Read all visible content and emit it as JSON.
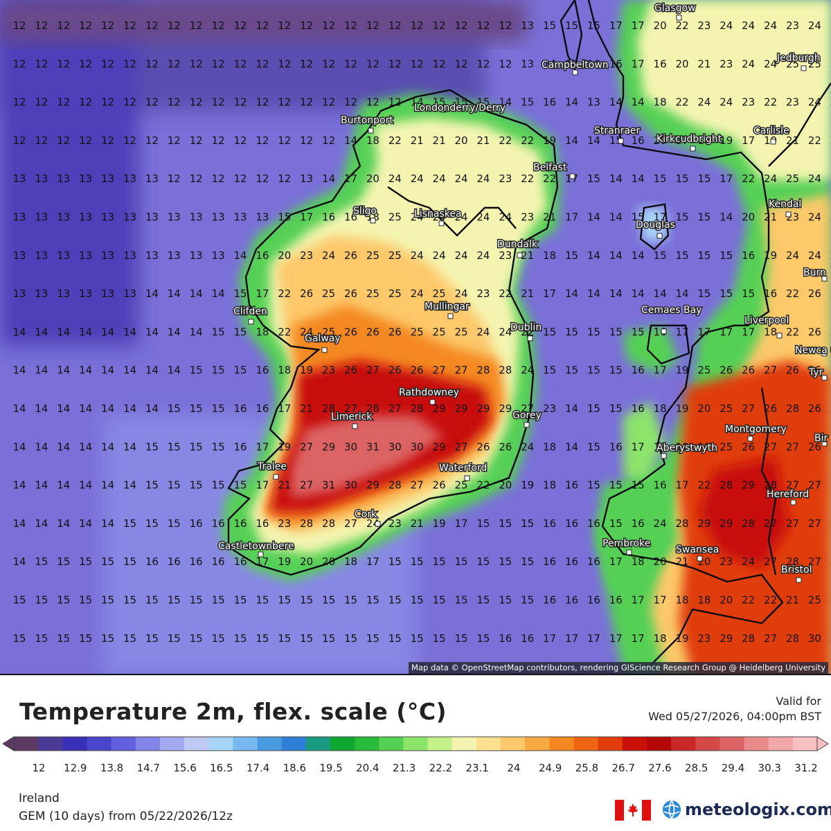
{
  "map": {
    "attribution": "Map data © OpenStreetMap contributors, rendering GIScience Research Group @ Heidelberg University",
    "grid_rows": [
      "12 12 12 12 12 12 12 12 12 12 12 12 12 12 12 12 12 12 12 12 12 12 12 13 15 15 15 17 17 20 22 23 24 24 24 23 24 24",
      "12 12 12 12 12 12 12 12 12 12 12 12 12 12 12 12 12 12 12 12 12 12 12 13 14 15 16 16 17 16 20 21 23 24 24 25 25 25",
      "12 12 12 12 12 12 12 12 12 12 12 12 12 12 12 12 12 12 14 15 15 15 14 15 16 14 13 14 14 18 22 24 24 23 22 23 24 24",
      "12 12 12 12 12 12 12 12 12 12 12 12 12 12 12 14 18 22 21 21 20 21 22 22 19 14 14 15 16 20 17 18 19 17 19 21 22 23",
      "13 13 13 13 13 13 13 12 12 12 12 12 12 13 14 17 20 24 24 24 24 24 23 22 22 17 15 14 14 15 15 15 17 22 24 25 24 24",
      "13 13 13 13 13 13 13 13 13 13 13 13 15 17 16 16 18 25 24 24 24 24 24 23 21 17 14 14 15 17 15 15 14 20 21 23 24 24",
      "13 13 13 13 13 13 13 13 13 13 14 16 20 23 24 26 25 25 24 24 24 24 23 21 18 15 14 14 14 15 15 15 15 16 19 24 24 24",
      "13 13 13 13 13 13 14 14 14 14 15 17 22 26 25 26 25 25 24 25 24 23 22 21 17 14 14 14 14 14 14 15 15 15 16 22 26 25",
      "14 14 14 14 14 14 14 14 14 15 15 18 22 24 25 26 26 26 25 25 25 24 24 22 15 15 15 15 15 16 17 17 17 17 18 22 26 25",
      "14 14 14 14 14 14 14 14 15 15 15 16 18 19 23 26 27 26 26 27 27 28 28 24 15 15 15 15 16 17 19 25 26 26 27 26 26 27",
      "14 14 14 14 14 14 14 15 15 15 16 16 17 21 28 27 28 27 28 29 29 29 29 27 23 14 15 15 16 18 19 20 25 27 26 28 26 25",
      "14 14 14 14 14 14 15 15 15 15 16 17 19 27 29 30 31 30 30 29 27 26 26 24 18 14 15 16 17 18 18 19 25 26 27 27 26 27",
      "14 14 14 14 14 14 15 15 15 15 15 17 21 27 31 30 29 28 27 26 25 22 20 19 18 16 15 15 15 16 17 22 28 29 28 27 27 27",
      "14 14 14 14 14 15 15 15 16 16 16 16 23 28 28 27 24 23 21 19 17 15 15 15 16 16 16 15 16 24 28 29 29 28 27 27 27 28",
      "14 15 15 15 15 15 16 16 16 16 16 17 19 20 20 18 17 15 15 15 15 15 15 15 16 16 16 17 18 20 21 20 23 24 27 28 27 30",
      "15 15 15 15 15 15 15 15 15 15 15 15 15 15 15 15 15 15 15 15 15 15 15 15 16 16 16 16 17 17 18 18 20 22 22 21 25 31",
      "15 15 15 15 15 15 15 15 15 15 15 15 15 15 15 15 15 15 15 15 15 15 16 16 17 17 17 17 17 18 19 23 29 28 27 28 30 29"
    ],
    "cities": [
      {
        "name": "Glasgow"
      },
      {
        "name": "Campbeltown"
      },
      {
        "name": "Jedburgh"
      },
      {
        "name": "Londonderry/Derry"
      },
      {
        "name": "Burtonport"
      },
      {
        "name": "Stranraer"
      },
      {
        "name": "Kirkcudbright"
      },
      {
        "name": "Carlisle"
      },
      {
        "name": "Belfast"
      },
      {
        "name": "Sligo"
      },
      {
        "name": "Lisnaskea"
      },
      {
        "name": "Kendal"
      },
      {
        "name": "Douglas"
      },
      {
        "name": "Dundalk"
      },
      {
        "name": "Burn"
      },
      {
        "name": "Mullingar"
      },
      {
        "name": "Cemaes Bay"
      },
      {
        "name": "Liverpool"
      },
      {
        "name": "Clifden"
      },
      {
        "name": "Dublin"
      },
      {
        "name": "Galway"
      },
      {
        "name": "Newca und"
      },
      {
        "name": "Tyr"
      },
      {
        "name": "Rathdowney"
      },
      {
        "name": "Limerick"
      },
      {
        "name": "Gorey"
      },
      {
        "name": "Montgomery"
      },
      {
        "name": "Bir"
      },
      {
        "name": "Aberystwyth"
      },
      {
        "name": "Tralee"
      },
      {
        "name": "Waterford"
      },
      {
        "name": "Hereford"
      },
      {
        "name": "Cork"
      },
      {
        "name": "Pembroke"
      },
      {
        "name": "Castletownbere"
      },
      {
        "name": "Swansea"
      },
      {
        "name": "Bristol"
      }
    ]
  },
  "legend": {
    "title": "Temperature 2m, flex. scale (°C)",
    "valid_label": "Valid for",
    "valid_time": "Wed 05/27/2026, 04:00pm BST",
    "scale_labels": [
      "12",
      "12.9",
      "13.8",
      "14.7",
      "15.6",
      "16.5",
      "17.4",
      "18.6",
      "19.5",
      "20.4",
      "21.3",
      "22.2",
      "23.1",
      "24",
      "24.9",
      "25.8",
      "26.7",
      "27.6",
      "28.5",
      "29.4",
      "30.3",
      "31.2"
    ],
    "scale_colors": [
      "#5a3a62",
      "#4a3a96",
      "#3a30b8",
      "#4a44cc",
      "#6260dc",
      "#8484e8",
      "#a4a8ee",
      "#c0c8f4",
      "#a8d4f8",
      "#78b8f0",
      "#4a9ae0",
      "#2e7ed8",
      "#1a9a80",
      "#0ea830",
      "#28bc3a",
      "#54d054",
      "#8ce46a",
      "#c4f08a",
      "#f4f4b0",
      "#fce090",
      "#fcc86a",
      "#f8a840",
      "#f48820",
      "#ee6410",
      "#e03c0c",
      "#c81008",
      "#b40808",
      "#c82828",
      "#d44848",
      "#dc6464",
      "#e88a8a",
      "#f2a8a8",
      "#f8c0c0"
    ]
  },
  "footer": {
    "region": "Ireland",
    "model": "GEM (10 days) from 05/22/2026/12z",
    "brand": "meteologix.com",
    "flag_icon": "canada-flag-icon",
    "logo_icon": "globe-logo-icon"
  }
}
